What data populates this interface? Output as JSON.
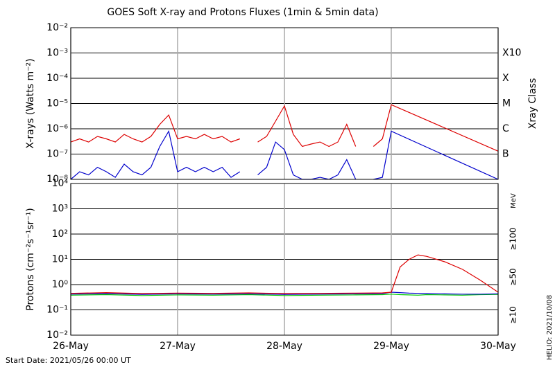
{
  "chart_data": [
    {
      "type": "line",
      "title": "GOES Soft X-ray and Protons Fluxes   (1min & 5min data)",
      "y_label": "X-rays (Watts m⁻²)",
      "y2_label": "Xray Class",
      "log_scale": true,
      "grid": true,
      "xlim": [
        0,
        96
      ],
      "ylim": [
        1e-08,
        0.01
      ],
      "yticks": [
        {
          "value": 0.01,
          "label": "10⁻²"
        },
        {
          "value": 0.001,
          "label": "10⁻³"
        },
        {
          "value": 0.0001,
          "label": "10⁻⁴"
        },
        {
          "value": 1e-05,
          "label": "10⁻⁵"
        },
        {
          "value": 1e-06,
          "label": "10⁻⁶"
        },
        {
          "value": 1e-07,
          "label": "10⁻⁷"
        },
        {
          "value": 1e-08,
          "label": "10⁻⁸"
        }
      ],
      "y2lim": [
        1e-08,
        0.01
      ],
      "y2ticks": [
        {
          "value": 0.001,
          "label": "X10"
        },
        {
          "value": 0.0001,
          "label": "X"
        },
        {
          "value": 1e-05,
          "label": "M"
        },
        {
          "value": 1e-06,
          "label": "C"
        },
        {
          "value": 1e-07,
          "label": "B"
        }
      ],
      "x": [
        0,
        2,
        4,
        6,
        8,
        10,
        12,
        14,
        16,
        18,
        20,
        22,
        24,
        26,
        28,
        30,
        32,
        34,
        36,
        38,
        40,
        42,
        44,
        46,
        48,
        50,
        52,
        54,
        56,
        58,
        60,
        62,
        64,
        66,
        68,
        70,
        72,
        96
      ],
      "series": [
        {
          "color": "#dd0000",
          "values": [
            3e-07,
            4e-07,
            3e-07,
            5e-07,
            4e-07,
            3e-07,
            6e-07,
            4e-07,
            3e-07,
            5e-07,
            1.5e-06,
            3.5e-06,
            4e-07,
            5e-07,
            4e-07,
            6e-07,
            4e-07,
            5e-07,
            3e-07,
            4e-07,
            null,
            3e-07,
            5e-07,
            2e-06,
            8e-06,
            6e-07,
            2e-07,
            2.5e-07,
            3e-07,
            2e-07,
            3e-07,
            1.5e-06,
            2e-07,
            null,
            2e-07,
            4e-07,
            9e-06,
            1.3e-07
          ]
        },
        {
          "color": "#0000cc",
          "values": [
            1e-08,
            2e-08,
            1.5e-08,
            3e-08,
            2e-08,
            1.2e-08,
            4e-08,
            2e-08,
            1.5e-08,
            3e-08,
            2e-07,
            8e-07,
            2e-08,
            3e-08,
            2e-08,
            3e-08,
            2e-08,
            3e-08,
            1.2e-08,
            2e-08,
            null,
            1.5e-08,
            3e-08,
            3e-07,
            1.5e-07,
            1.5e-08,
            1e-08,
            1e-08,
            1.2e-08,
            1e-08,
            1.5e-08,
            6e-08,
            1e-08,
            null,
            1e-08,
            1.2e-08,
            8e-07,
            1e-08
          ]
        }
      ]
    },
    {
      "type": "line",
      "y_label": "Protons (cm⁻²s⁻¹sr⁻¹)",
      "unit_label": "MeV",
      "log_scale": true,
      "grid": true,
      "threshold": 10,
      "xlim": [
        0,
        96
      ],
      "xticks": [
        {
          "value": 0,
          "label": "26-May"
        },
        {
          "value": 24,
          "label": "27-May"
        },
        {
          "value": 48,
          "label": "28-May"
        },
        {
          "value": 72,
          "label": "29-May"
        },
        {
          "value": 96,
          "label": "30-May"
        }
      ],
      "ylim": [
        0.01,
        10000
      ],
      "yticks": [
        {
          "value": 10000,
          "label": "10⁴"
        },
        {
          "value": 1000,
          "label": "10³"
        },
        {
          "value": 100,
          "label": "10²"
        },
        {
          "value": 10,
          "label": "10¹"
        },
        {
          "value": 1,
          "label": "10⁰"
        },
        {
          "value": 0.1,
          "label": "10⁻¹"
        },
        {
          "value": 0.01,
          "label": "10⁻²"
        }
      ],
      "x": [
        0,
        8,
        16,
        24,
        32,
        40,
        48,
        56,
        64,
        70,
        72,
        74,
        76,
        78,
        80,
        84,
        88,
        92,
        96
      ],
      "series": [
        {
          "name": "≥100",
          "color": "#00cc00",
          "values": [
            0.38,
            0.4,
            0.37,
            0.39,
            0.38,
            0.4,
            0.37,
            0.38,
            0.39,
            0.4,
            0.42,
            0.4,
            0.39,
            0.38,
            0.4,
            0.39,
            0.38,
            0.4,
            0.41
          ]
        },
        {
          "name": "≥50",
          "color": "#0000cc",
          "values": [
            0.42,
            0.44,
            0.41,
            0.43,
            0.42,
            0.43,
            0.41,
            0.42,
            0.43,
            0.44,
            0.5,
            0.48,
            0.46,
            0.45,
            0.44,
            0.43,
            0.42,
            0.42,
            0.43
          ]
        },
        {
          "name": "≥10",
          "color": "#dd0000",
          "values": [
            0.45,
            0.48,
            0.44,
            0.46,
            0.45,
            0.47,
            0.44,
            0.45,
            0.46,
            0.47,
            0.5,
            5,
            10,
            15,
            13,
            8,
            4,
            1.5,
            0.5
          ]
        }
      ]
    }
  ],
  "footer": {
    "start_date": "Start Date: 2021/05/26 00:00 UT",
    "credit": "HELIO: 2021/10/08"
  }
}
